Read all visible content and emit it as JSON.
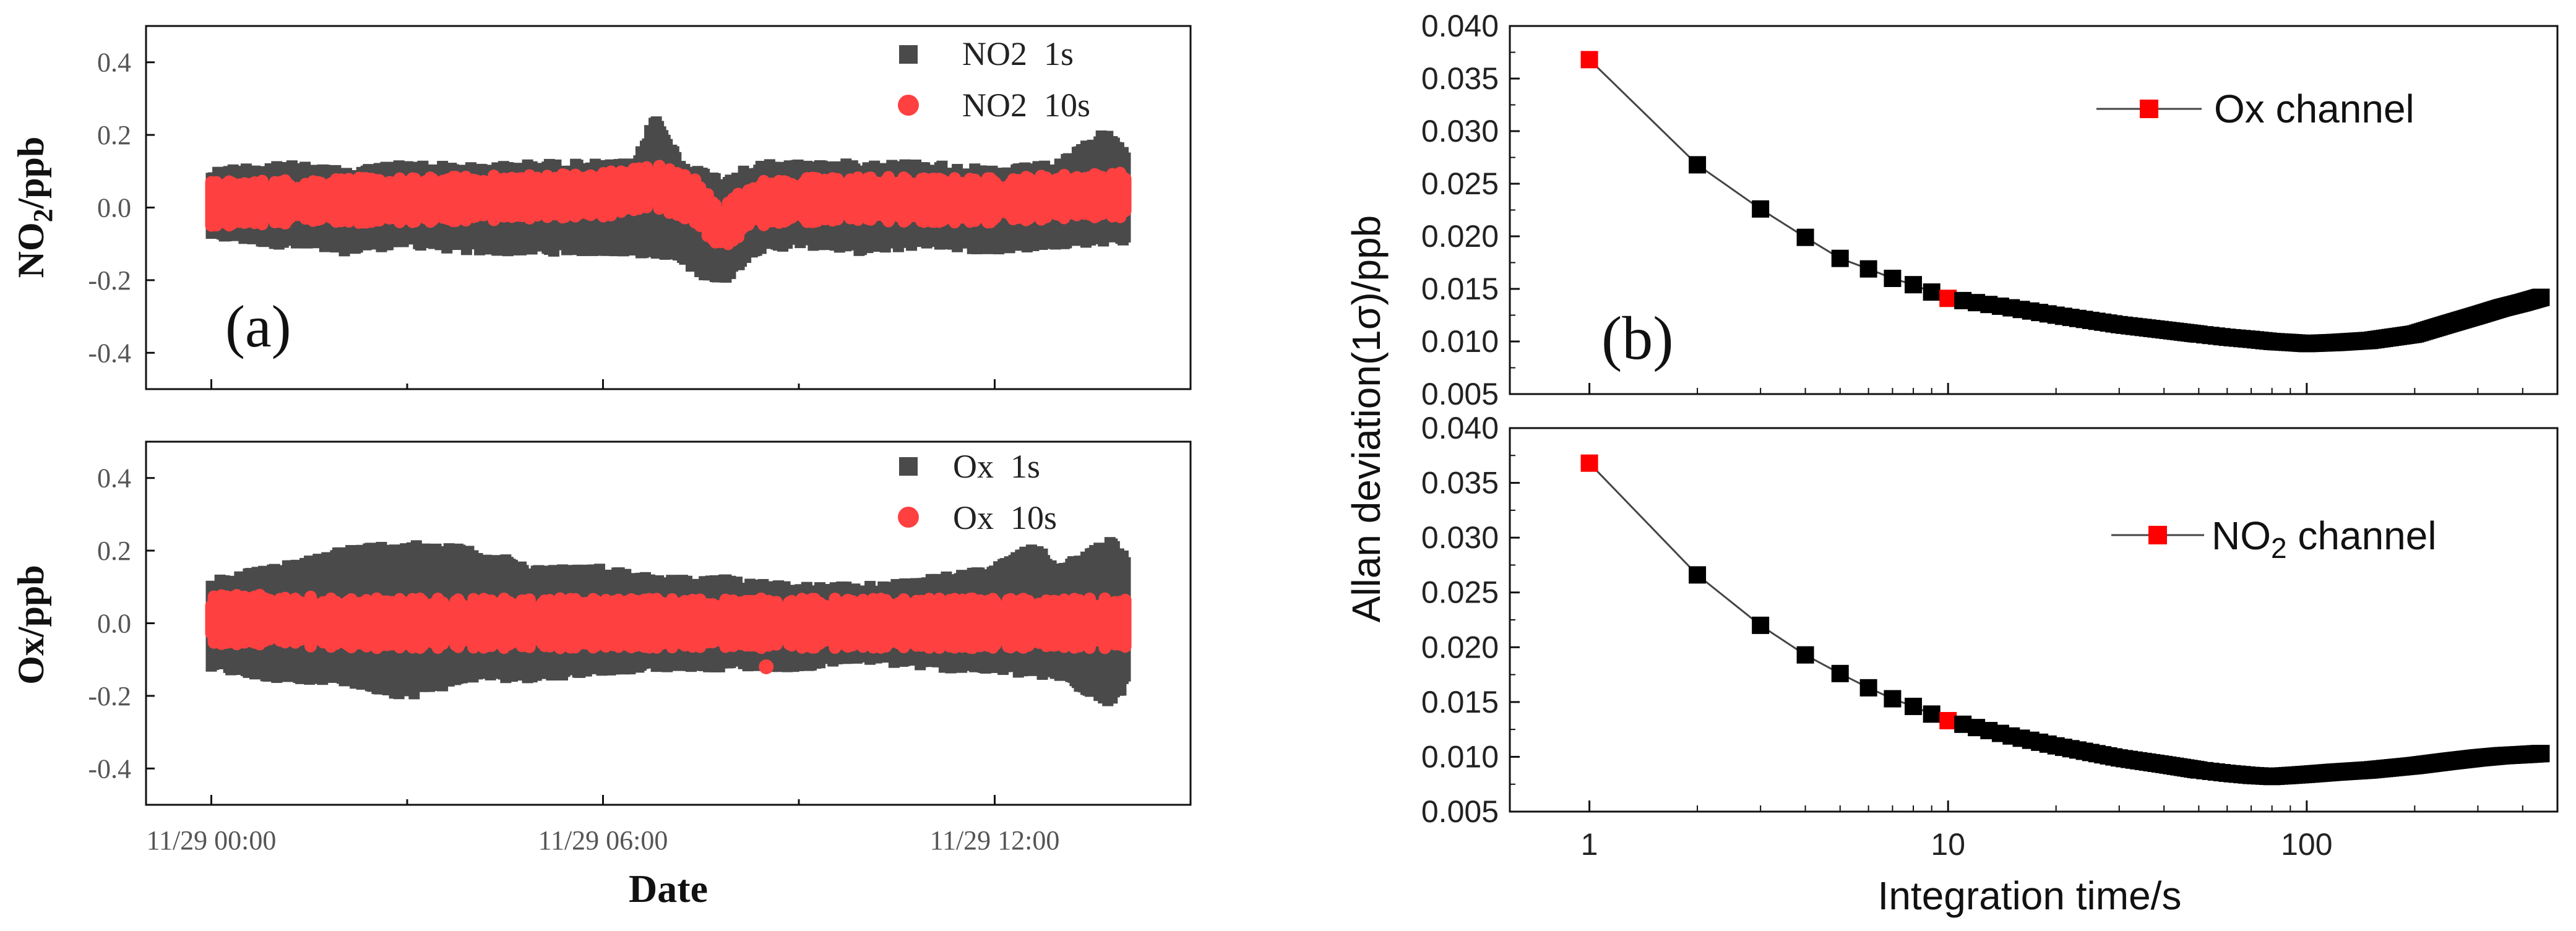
{
  "chart_data": [
    {
      "panel": "(a)",
      "type": "scatter",
      "title": "",
      "xlabel": "Date",
      "ylabel": "NO2/ppb",
      "ylim": [
        -0.5,
        0.5
      ],
      "yticks": [
        "0.4",
        "0.2",
        "0.0",
        "-0.2",
        "-0.4"
      ],
      "xticks": [
        "11/29 00:00",
        "11/29 06:00",
        "11/29 12:00"
      ],
      "xlim_hours": [
        -1,
        15
      ],
      "data_hours": [
        0,
        14
      ],
      "legend_position": "top-right",
      "series": [
        {
          "name": "NO2  1s",
          "color": "#4a4a4a",
          "marker": "square",
          "center": [
            [
              0,
              0.01
            ],
            [
              1,
              0.015
            ],
            [
              2,
              0.02
            ],
            [
              3,
              0.02
            ],
            [
              4,
              0.025
            ],
            [
              5,
              0.03
            ],
            [
              6,
              0.035
            ],
            [
              6.8,
              0.05
            ],
            [
              7.4,
              0.02
            ],
            [
              7.8,
              -0.06
            ],
            [
              8.3,
              0.01
            ],
            [
              9,
              0.02
            ],
            [
              10,
              0.025
            ],
            [
              11,
              0.02
            ],
            [
              12,
              0.02
            ],
            [
              13,
              0.03
            ],
            [
              14,
              0.035
            ]
          ],
          "upper_envelope": [
            [
              0,
              0.1
            ],
            [
              1,
              0.12
            ],
            [
              2,
              0.1
            ],
            [
              3,
              0.12
            ],
            [
              4,
              0.11
            ],
            [
              5,
              0.12
            ],
            [
              6,
              0.12
            ],
            [
              6.5,
              0.12
            ],
            [
              6.8,
              0.25
            ],
            [
              7.2,
              0.12
            ],
            [
              7.8,
              0.08
            ],
            [
              8.5,
              0.12
            ],
            [
              9,
              0.12
            ],
            [
              10,
              0.12
            ],
            [
              11,
              0.12
            ],
            [
              12,
              0.1
            ],
            [
              13,
              0.12
            ],
            [
              13.7,
              0.21
            ],
            [
              14,
              0.15
            ]
          ],
          "lower_envelope": [
            [
              0,
              -0.08
            ],
            [
              1,
              -0.1
            ],
            [
              2,
              -0.12
            ],
            [
              3,
              -0.1
            ],
            [
              4,
              -0.12
            ],
            [
              5,
              -0.12
            ],
            [
              6,
              -0.12
            ],
            [
              7,
              -0.13
            ],
            [
              7.8,
              -0.21
            ],
            [
              8.3,
              -0.12
            ],
            [
              9,
              -0.1
            ],
            [
              10,
              -0.12
            ],
            [
              11,
              -0.1
            ],
            [
              12,
              -0.12
            ],
            [
              13,
              -0.1
            ],
            [
              14,
              -0.09
            ]
          ]
        },
        {
          "name": "NO2  10s",
          "color": "#ff4040",
          "marker": "circle",
          "center": [
            [
              0,
              0.01
            ],
            [
              1,
              0.015
            ],
            [
              2,
              0.02
            ],
            [
              3,
              0.02
            ],
            [
              4,
              0.025
            ],
            [
              5,
              0.03
            ],
            [
              6,
              0.035
            ],
            [
              6.8,
              0.06
            ],
            [
              7.4,
              0.02
            ],
            [
              7.8,
              -0.06
            ],
            [
              8.3,
              0.01
            ],
            [
              9,
              0.02
            ],
            [
              10,
              0.025
            ],
            [
              11,
              0.02
            ],
            [
              12,
              0.02
            ],
            [
              13,
              0.03
            ],
            [
              14,
              0.035
            ]
          ],
          "half_width": 0.05
        }
      ]
    },
    {
      "panel": "",
      "type": "scatter",
      "title": "",
      "xlabel": "Date",
      "ylabel": "Ox/ppb",
      "ylim": [
        -0.5,
        0.5
      ],
      "yticks": [
        "0.4",
        "0.2",
        "0.0",
        "-0.2",
        "-0.4"
      ],
      "xticks": [
        "11/29 00:00",
        "11/29 06:00",
        "11/29 12:00"
      ],
      "xlim_hours": [
        -1,
        15
      ],
      "data_hours": [
        0,
        14
      ],
      "legend_position": "top-right",
      "series": [
        {
          "name": "Ox  1s",
          "color": "#4a4a4a",
          "marker": "square",
          "center": [
            [
              0,
              0.01
            ],
            [
              1,
              0.01
            ],
            [
              2,
              0.0
            ],
            [
              3,
              0.0
            ],
            [
              4,
              0.0
            ],
            [
              5,
              0.0
            ],
            [
              6,
              0.0
            ],
            [
              7,
              0.0
            ],
            [
              8,
              0.0
            ],
            [
              9,
              0.0
            ],
            [
              10,
              0.0
            ],
            [
              11,
              0.0
            ],
            [
              12,
              0.0
            ],
            [
              13,
              0.0
            ],
            [
              14,
              0.0
            ]
          ],
          "upper_envelope": [
            [
              0,
              0.12
            ],
            [
              1,
              0.15
            ],
            [
              2,
              0.2
            ],
            [
              3,
              0.22
            ],
            [
              4,
              0.2
            ],
            [
              5,
              0.15
            ],
            [
              6,
              0.15
            ],
            [
              7,
              0.12
            ],
            [
              8,
              0.12
            ],
            [
              9,
              0.1
            ],
            [
              10,
              0.1
            ],
            [
              11,
              0.12
            ],
            [
              12,
              0.15
            ],
            [
              12.6,
              0.21
            ],
            [
              13,
              0.15
            ],
            [
              13.8,
              0.23
            ],
            [
              14,
              0.18
            ]
          ],
          "lower_envelope": [
            [
              0,
              -0.12
            ],
            [
              1,
              -0.15
            ],
            [
              2,
              -0.16
            ],
            [
              3,
              -0.2
            ],
            [
              4,
              -0.15
            ],
            [
              5,
              -0.15
            ],
            [
              6,
              -0.13
            ],
            [
              7,
              -0.12
            ],
            [
              8,
              -0.12
            ],
            [
              9,
              -0.12
            ],
            [
              10,
              -0.1
            ],
            [
              11,
              -0.12
            ],
            [
              12,
              -0.13
            ],
            [
              13,
              -0.15
            ],
            [
              13.8,
              -0.22
            ],
            [
              14,
              -0.17
            ]
          ]
        },
        {
          "name": "Ox  10s",
          "color": "#ff4040",
          "marker": "circle",
          "center": [
            [
              0,
              0.01
            ],
            [
              1,
              0.01
            ],
            [
              2,
              0.0
            ],
            [
              3,
              0.0
            ],
            [
              4,
              0.0
            ],
            [
              5,
              0.0
            ],
            [
              6,
              0.0
            ],
            [
              7,
              0.0
            ],
            [
              8,
              0.0
            ],
            [
              9,
              0.0
            ],
            [
              10,
              0.0
            ],
            [
              11,
              0.0
            ],
            [
              12,
              0.0
            ],
            [
              13,
              0.0
            ],
            [
              14,
              0.0
            ]
          ],
          "half_width": 0.055,
          "outliers": [
            [
              8.5,
              -0.12
            ]
          ]
        }
      ]
    },
    {
      "panel": "(b)",
      "type": "line",
      "title": "",
      "xlabel": "Integration time/s",
      "ylabel": "Allan deviation(1σ)/ppb",
      "xscale": "log",
      "xlim": [
        0.6,
        500
      ],
      "xticks": [
        "1",
        "10",
        "100"
      ],
      "ylim": [
        0.005,
        0.04
      ],
      "yticks": [
        "0.040",
        "0.035",
        "0.030",
        "0.025",
        "0.020",
        "0.015",
        "0.010",
        "0.005"
      ],
      "legend_position": "top-right",
      "series": [
        {
          "name": "Ox channel",
          "color": "#000000",
          "marker": "square",
          "highlight_color": "#ff0000",
          "highlight_x": [
            1,
            10
          ],
          "x": [
            1,
            2,
            3,
            4,
            5,
            6,
            7,
            8,
            9,
            10,
            15,
            20,
            30,
            40,
            50,
            60,
            70,
            80,
            90,
            100,
            120,
            150,
            200,
            250,
            300,
            350,
            400,
            450
          ],
          "y": [
            0.0368,
            0.0268,
            0.0226,
            0.0199,
            0.0179,
            0.0169,
            0.016,
            0.0154,
            0.0147,
            0.0141,
            0.0132,
            0.0125,
            0.0116,
            0.0111,
            0.0107,
            0.0104,
            0.0102,
            0.01,
            0.0099,
            0.0098,
            0.0099,
            0.0101,
            0.0107,
            0.0117,
            0.0125,
            0.0132,
            0.0137,
            0.0142
          ]
        },
        {
          "name": "NO2 channel",
          "color": "#000000",
          "marker": "square",
          "highlight_color": "#ff0000",
          "highlight_x": [
            1,
            10
          ],
          "x": [
            1,
            2,
            3,
            4,
            5,
            6,
            7,
            8,
            9,
            10,
            15,
            20,
            30,
            40,
            50,
            60,
            70,
            80,
            90,
            100,
            120,
            150,
            200,
            250,
            300,
            350,
            400,
            450
          ],
          "y": [
            0.0368,
            0.0266,
            0.022,
            0.0193,
            0.0176,
            0.0163,
            0.0153,
            0.0146,
            0.0139,
            0.0133,
            0.0119,
            0.011,
            0.0099,
            0.0093,
            0.0088,
            0.0085,
            0.0083,
            0.0082,
            0.0083,
            0.0084,
            0.0086,
            0.0088,
            0.0092,
            0.0096,
            0.0099,
            0.0101,
            0.0102,
            0.0103
          ]
        }
      ]
    }
  ]
}
